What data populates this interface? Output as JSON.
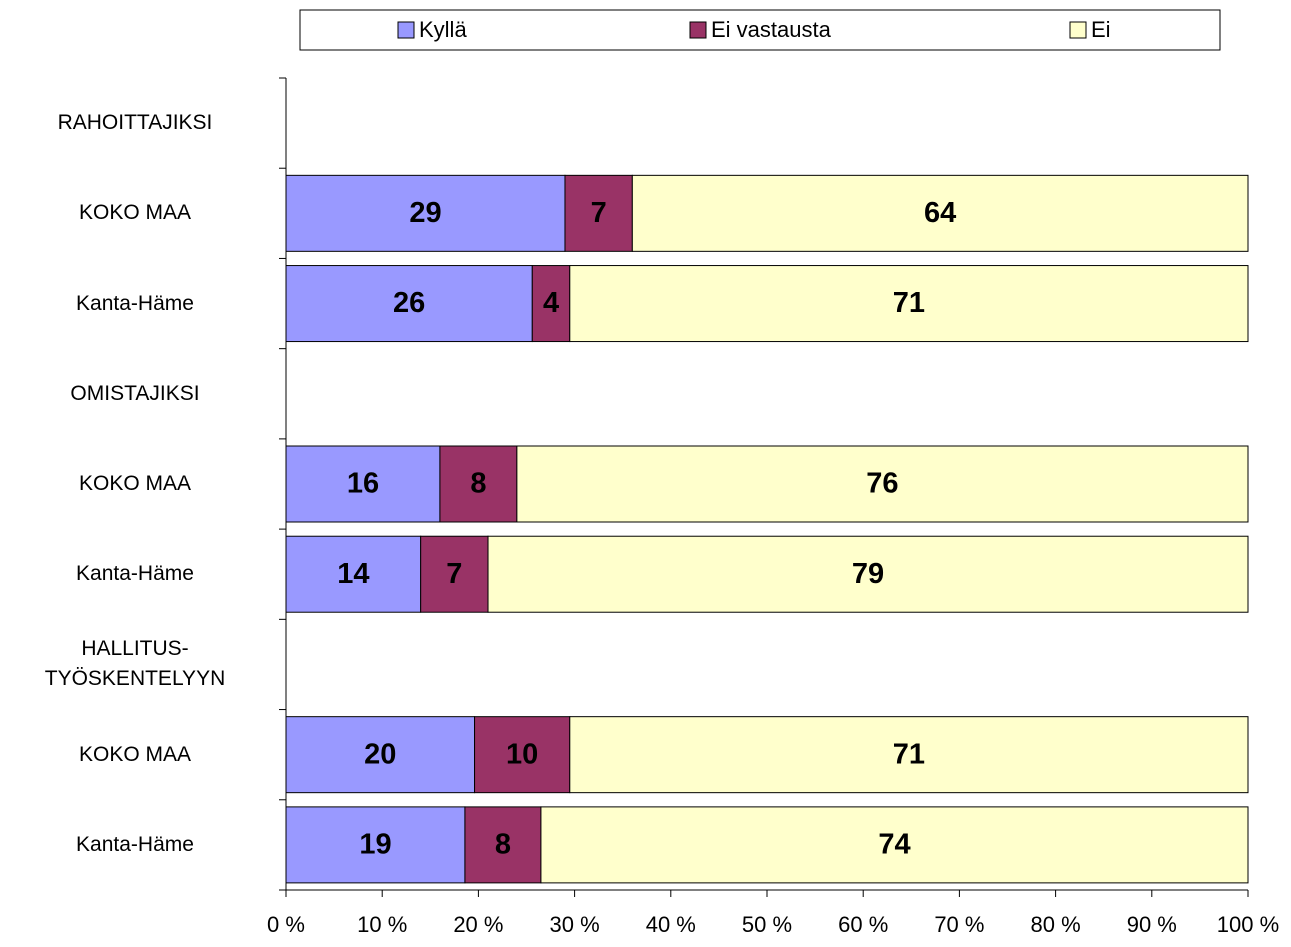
{
  "chart_data": {
    "type": "stacked-bar-horizontal",
    "categories": [
      "RAHOITTAJIKSI",
      "KOKO MAA",
      "Kanta-Häme",
      "OMISTAJIKSI",
      "KOKO MAA",
      "Kanta-Häme",
      "HALLITUS-\nTYÖSKENTELYYN",
      "KOKO MAA",
      "Kanta-Häme"
    ],
    "series": [
      {
        "name": "Kyllä",
        "color": "#9999ff",
        "values": [
          null,
          29,
          25.6,
          null,
          16,
          14,
          null,
          19.6,
          18.6
        ],
        "value_labels": [
          null,
          "29",
          "26",
          null,
          "16",
          "14",
          null,
          "20",
          "19"
        ]
      },
      {
        "name": "Ei vastausta",
        "color": "#993366",
        "values": [
          null,
          7,
          3.9,
          null,
          8,
          7,
          null,
          9.9,
          7.9
        ],
        "value_labels": [
          null,
          "7",
          "4",
          null,
          "8",
          "7",
          null,
          "10",
          "8"
        ]
      },
      {
        "name": "Ei",
        "color": "#ffffcc",
        "values": [
          null,
          64,
          70.5,
          null,
          76,
          79,
          null,
          70.5,
          73.5
        ],
        "value_labels": [
          null,
          "64",
          "71",
          null,
          "76",
          "79",
          null,
          "71",
          "74"
        ]
      }
    ],
    "xlim": [
      0,
      100
    ],
    "xticks": [
      {
        "value": 0,
        "label": "0 %"
      },
      {
        "value": 10,
        "label": "10 %"
      },
      {
        "value": 20,
        "label": "20 %"
      },
      {
        "value": 30,
        "label": "30 %"
      },
      {
        "value": 40,
        "label": "40 %"
      },
      {
        "value": 50,
        "label": "50 %"
      },
      {
        "value": 60,
        "label": "60 %"
      },
      {
        "value": 70,
        "label": "70 %"
      },
      {
        "value": 80,
        "label": "80 %"
      },
      {
        "value": 90,
        "label": "90 %"
      },
      {
        "value": 100,
        "label": "100 %"
      }
    ],
    "legend": "top"
  }
}
